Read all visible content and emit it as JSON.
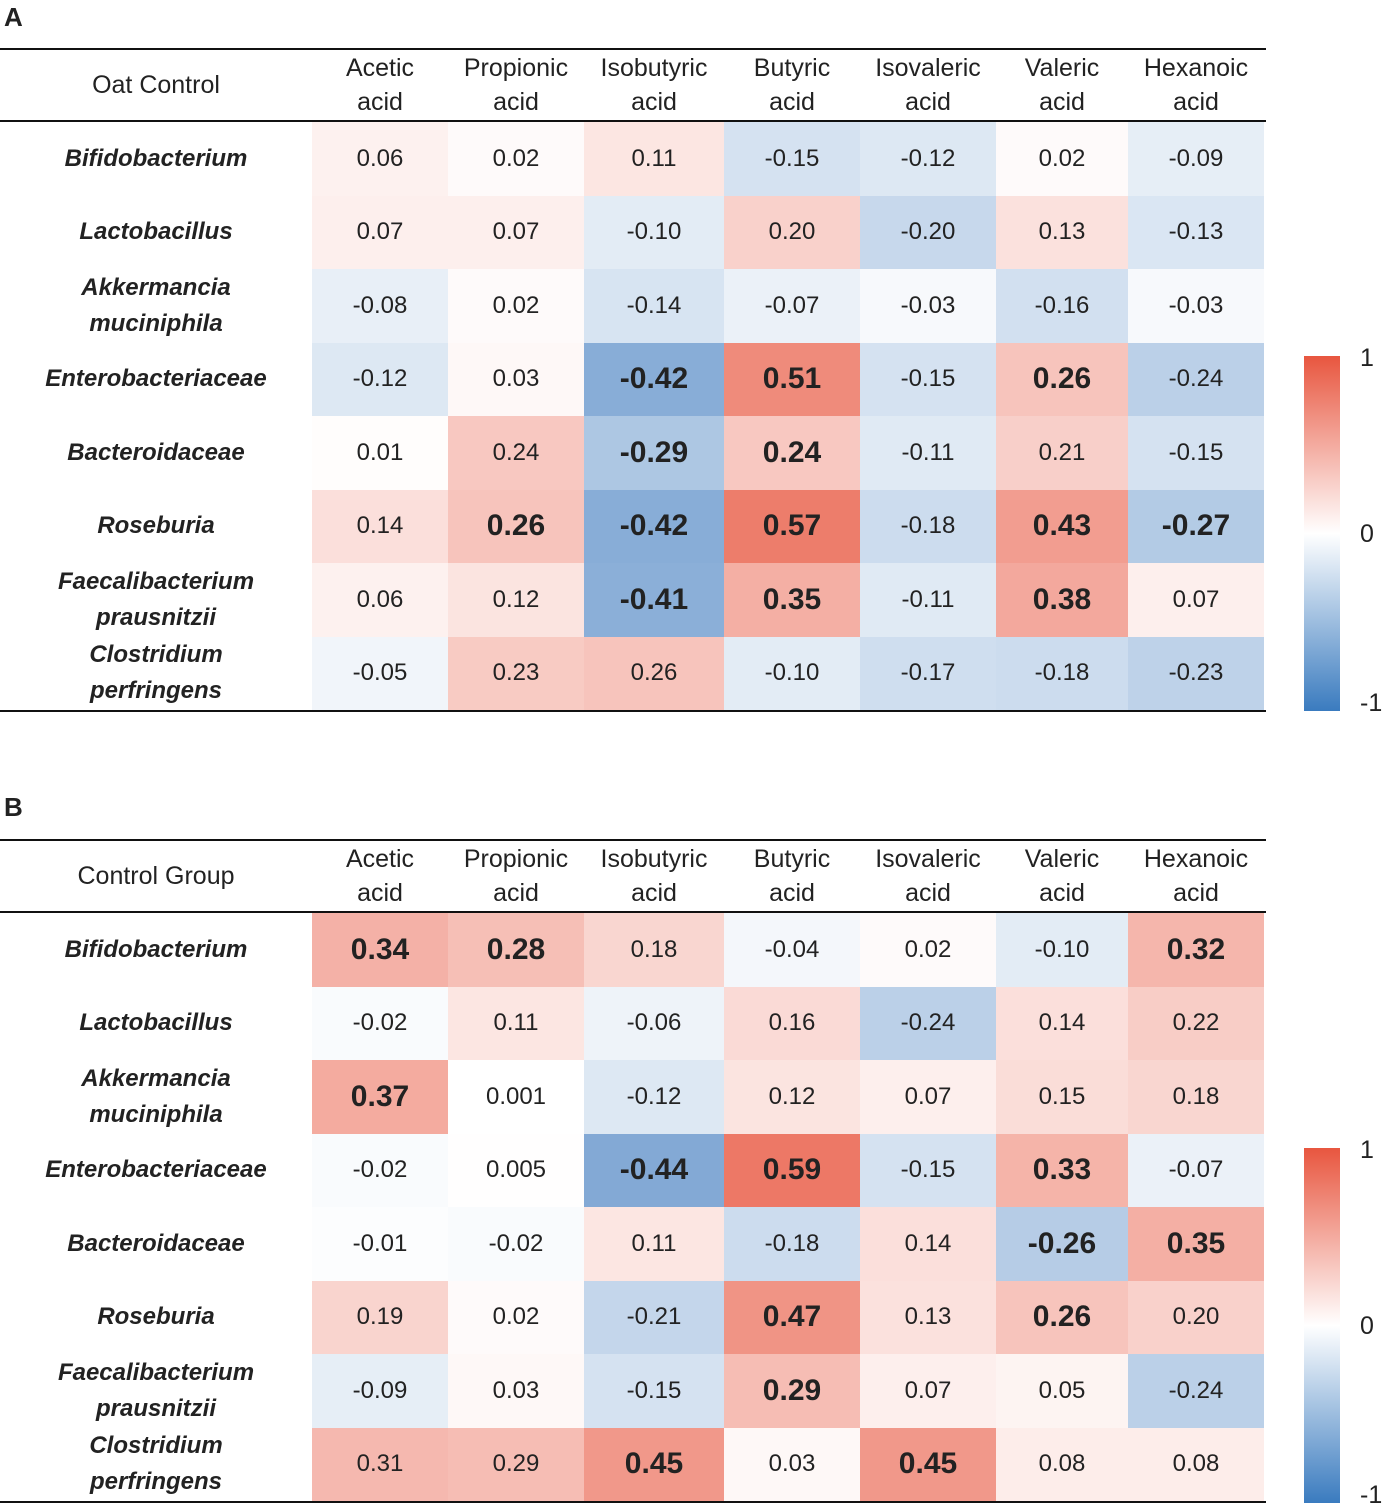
{
  "colors": {
    "positive": "#e8563f",
    "neutral": "#ffffff",
    "negative": "#2e6fb8"
  },
  "chart_data": [
    {
      "type": "heatmap",
      "panel": "A",
      "title": "Oat Control",
      "columns": [
        [
          "Acetic",
          "acid"
        ],
        [
          "Propionic",
          "acid"
        ],
        [
          "Isobutyric",
          "acid"
        ],
        [
          "Butyric",
          "acid"
        ],
        [
          "Isovaleric",
          "acid"
        ],
        [
          "Valeric",
          "acid"
        ],
        [
          "Hexanoic",
          "acid"
        ]
      ],
      "rows": [
        {
          "label": [
            "Bifidobacterium"
          ],
          "values": [
            "0.06",
            "0.02",
            "0.11",
            "-0.15",
            "-0.12",
            "0.02",
            "-0.09"
          ],
          "bold": [
            false,
            false,
            false,
            false,
            false,
            false,
            false
          ]
        },
        {
          "label": [
            "Lactobacillus"
          ],
          "values": [
            "0.07",
            "0.07",
            "-0.10",
            "0.20",
            "-0.20",
            "0.13",
            "-0.13"
          ],
          "bold": [
            false,
            false,
            false,
            false,
            false,
            false,
            false
          ]
        },
        {
          "label": [
            "Akkermancia",
            "muciniphila"
          ],
          "values": [
            "-0.08",
            "0.02",
            "-0.14",
            "-0.07",
            "-0.03",
            "-0.16",
            "-0.03"
          ],
          "bold": [
            false,
            false,
            false,
            false,
            false,
            false,
            false
          ]
        },
        {
          "label": [
            "Enterobacteriaceae"
          ],
          "values": [
            "-0.12",
            "0.03",
            "-0.42",
            "0.51",
            "-0.15",
            "0.26",
            "-0.24"
          ],
          "bold": [
            false,
            false,
            true,
            true,
            false,
            true,
            false
          ]
        },
        {
          "label": [
            "Bacteroidaceae"
          ],
          "values": [
            "0.01",
            "0.24",
            "-0.29",
            "0.24",
            "-0.11",
            "0.21",
            "-0.15"
          ],
          "bold": [
            false,
            false,
            true,
            true,
            false,
            false,
            false
          ]
        },
        {
          "label": [
            "Roseburia"
          ],
          "values": [
            "0.14",
            "0.26",
            "-0.42",
            "0.57",
            "-0.18",
            "0.43",
            "-0.27"
          ],
          "bold": [
            false,
            true,
            true,
            true,
            false,
            true,
            true
          ]
        },
        {
          "label": [
            "Faecalibacterium",
            "prausnitzii"
          ],
          "values": [
            "0.06",
            "0.12",
            "-0.41",
            "0.35",
            "-0.11",
            "0.38",
            "0.07"
          ],
          "bold": [
            false,
            false,
            true,
            true,
            false,
            true,
            false
          ]
        },
        {
          "label": [
            "Clostridium",
            "perfringens"
          ],
          "values": [
            "-0.05",
            "0.23",
            "0.26",
            "-0.10",
            "-0.17",
            "-0.18",
            "-0.23"
          ],
          "bold": [
            false,
            false,
            false,
            false,
            false,
            false,
            false
          ]
        }
      ],
      "color_range": [
        -1,
        1
      ],
      "legend_ticks": [
        "1",
        "0",
        "-1"
      ]
    },
    {
      "type": "heatmap",
      "panel": "B",
      "title": "Control Group",
      "columns": [
        [
          "Acetic",
          "acid"
        ],
        [
          "Propionic",
          "acid"
        ],
        [
          "Isobutyric",
          "acid"
        ],
        [
          "Butyric",
          "acid"
        ],
        [
          "Isovaleric",
          "acid"
        ],
        [
          "Valeric",
          "acid"
        ],
        [
          "Hexanoic",
          "acid"
        ]
      ],
      "rows": [
        {
          "label": [
            "Bifidobacterium"
          ],
          "values": [
            "0.34",
            "0.28",
            "0.18",
            "-0.04",
            "0.02",
            "-0.10",
            "0.32"
          ],
          "bold": [
            true,
            true,
            false,
            false,
            false,
            false,
            true
          ]
        },
        {
          "label": [
            "Lactobacillus"
          ],
          "values": [
            "-0.02",
            "0.11",
            "-0.06",
            "0.16",
            "-0.24",
            "0.14",
            "0.22"
          ],
          "bold": [
            false,
            false,
            false,
            false,
            false,
            false,
            false
          ]
        },
        {
          "label": [
            "Akkermancia",
            "muciniphila"
          ],
          "values": [
            "0.37",
            "0.001",
            "-0.12",
            "0.12",
            "0.07",
            "0.15",
            "0.18"
          ],
          "bold": [
            true,
            false,
            false,
            false,
            false,
            false,
            false
          ]
        },
        {
          "label": [
            "Enterobacteriaceae"
          ],
          "values": [
            "-0.02",
            "0.005",
            "-0.44",
            "0.59",
            "-0.15",
            "0.33",
            "-0.07"
          ],
          "bold": [
            false,
            false,
            true,
            true,
            false,
            true,
            false
          ]
        },
        {
          "label": [
            "Bacteroidaceae"
          ],
          "values": [
            "-0.01",
            "-0.02",
            "0.11",
            "-0.18",
            "0.14",
            "-0.26",
            "0.35"
          ],
          "bold": [
            false,
            false,
            false,
            false,
            false,
            true,
            true
          ]
        },
        {
          "label": [
            "Roseburia"
          ],
          "values": [
            "0.19",
            "0.02",
            "-0.21",
            "0.47",
            "0.13",
            "0.26",
            "0.20"
          ],
          "bold": [
            false,
            false,
            false,
            true,
            false,
            true,
            false
          ]
        },
        {
          "label": [
            "Faecalibacterium",
            "prausnitzii"
          ],
          "values": [
            "-0.09",
            "0.03",
            "-0.15",
            "0.29",
            "0.07",
            "0.05",
            "-0.24"
          ],
          "bold": [
            false,
            false,
            false,
            true,
            false,
            false,
            false
          ]
        },
        {
          "label": [
            "Clostridium",
            "perfringens"
          ],
          "values": [
            "0.31",
            "0.29",
            "0.45",
            "0.03",
            "0.45",
            "0.08",
            "0.08"
          ],
          "bold": [
            false,
            false,
            true,
            false,
            true,
            false,
            false
          ]
        }
      ],
      "color_range": [
        -1,
        1
      ],
      "legend_ticks": [
        "1",
        "0",
        "-1"
      ]
    }
  ]
}
